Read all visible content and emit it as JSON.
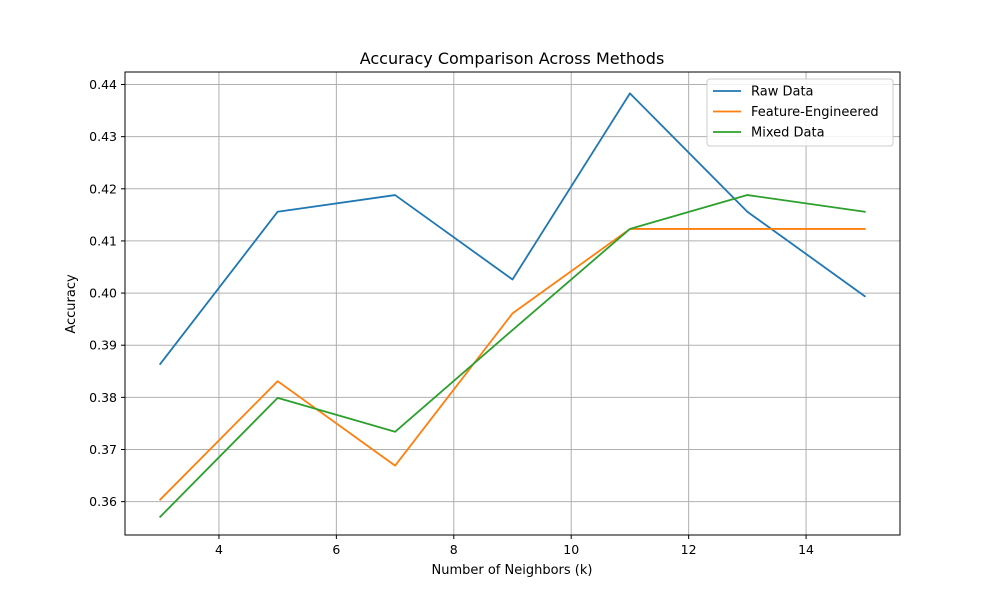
{
  "chart_data": {
    "type": "line",
    "title": "Accuracy Comparison Across Methods",
    "xlabel": "Number of Neighbors (k)",
    "ylabel": "Accuracy",
    "x": [
      3,
      5,
      7,
      9,
      11,
      13,
      15
    ],
    "xlim": [
      2.4,
      15.6
    ],
    "ylim": [
      0.3536,
      0.4424
    ],
    "xticks": [
      4,
      6,
      8,
      10,
      12,
      14
    ],
    "yticks": [
      0.36,
      0.37,
      0.38,
      0.39,
      0.4,
      0.41,
      0.42,
      0.43,
      0.44
    ],
    "ytick_labels": [
      "0.36",
      "0.37",
      "0.38",
      "0.39",
      "0.40",
      "0.41",
      "0.42",
      "0.43",
      "0.44"
    ],
    "grid": true,
    "legend_position": "top-right",
    "series": [
      {
        "name": "Raw Data",
        "color": "#1f77b4",
        "values": [
          0.3864,
          0.4156,
          0.4188,
          0.4026,
          0.4383,
          0.4156,
          0.3994
        ]
      },
      {
        "name": "Feature-Engineered",
        "color": "#ff7f0e",
        "values": [
          0.3604,
          0.3831,
          0.3669,
          0.3961,
          0.4123,
          0.4123,
          0.4123
        ]
      },
      {
        "name": "Mixed Data",
        "color": "#2ca02c",
        "values": [
          0.3571,
          0.3799,
          0.3734,
          0.3929,
          0.4123,
          0.4188,
          0.4156
        ]
      }
    ]
  }
}
